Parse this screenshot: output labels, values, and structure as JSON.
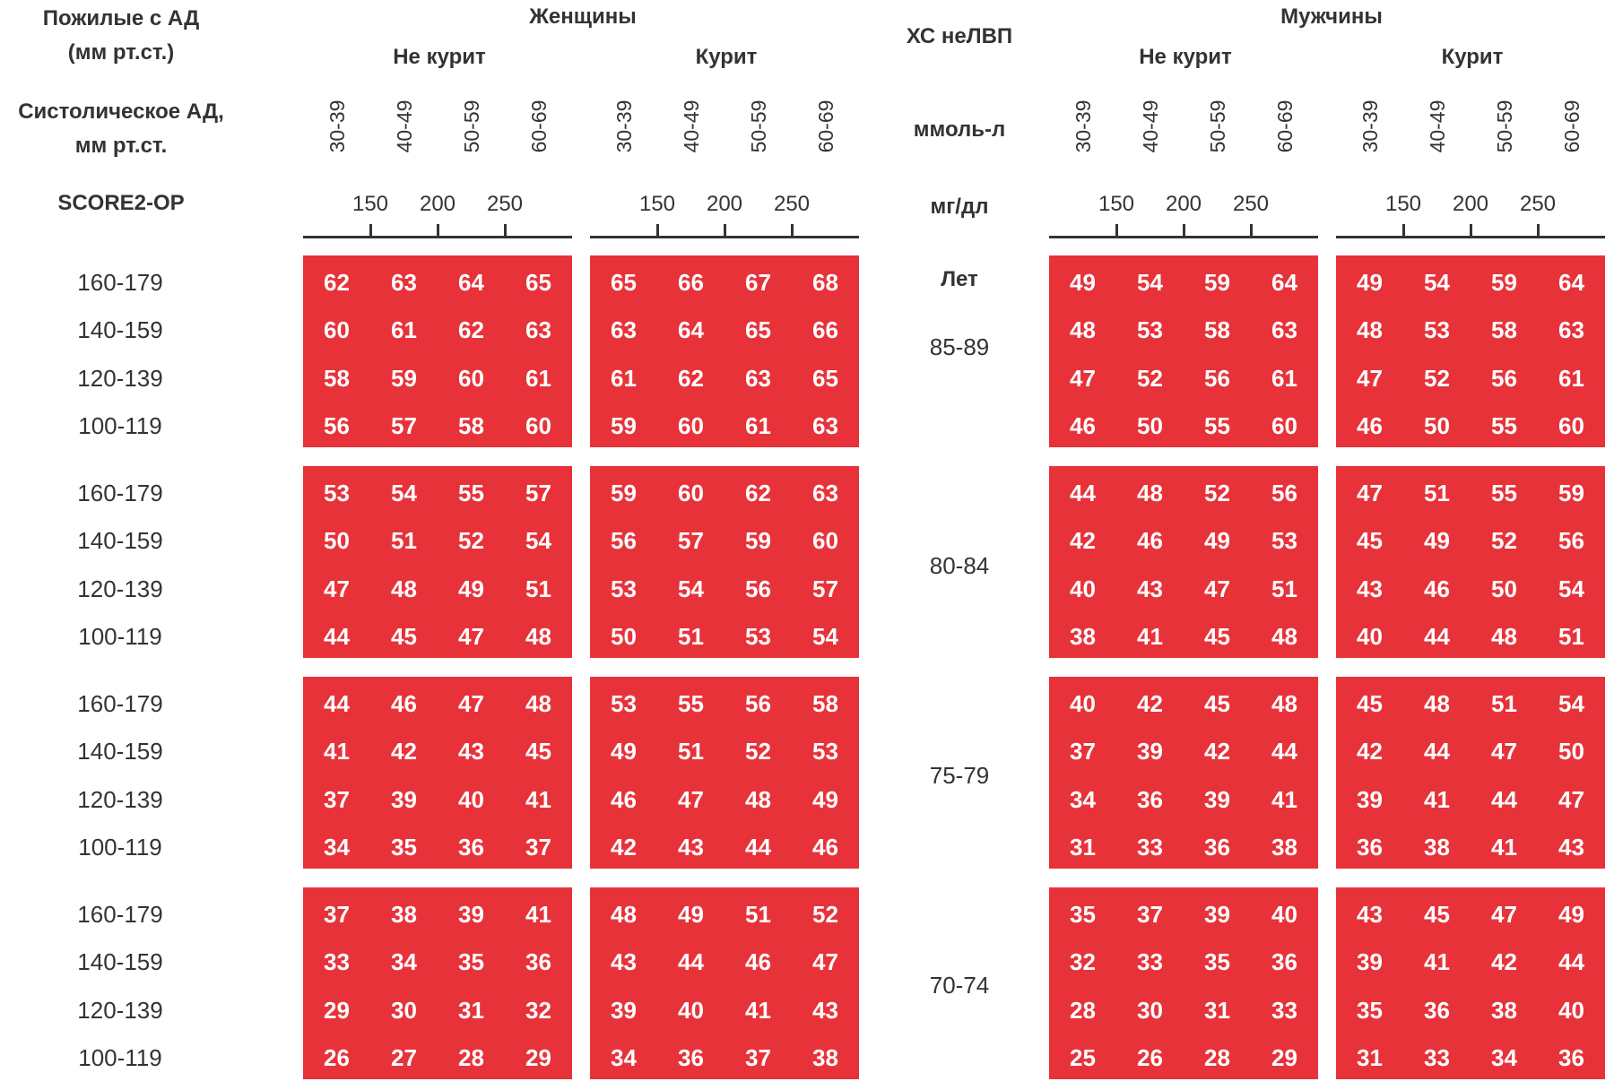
{
  "chart_data": {
    "type": "table",
    "title": "",
    "left_header": {
      "line1": "Пожилые с АД",
      "line2": "(мм рт.ст.)",
      "sbp_line1": "Систолическое АД,",
      "sbp_line2": "мм рт.ст.",
      "score_label": "SCORE2-OP"
    },
    "center_header": {
      "hc_label": "ХС неЛВП",
      "mmol_label": "ммоль-л",
      "mgdl_label": "мг/дл",
      "age_label": "Лет"
    },
    "sexes": [
      {
        "name": "Женщины",
        "groups": [
          "Не курит",
          "Курит"
        ]
      },
      {
        "name": "Мужчины",
        "groups": [
          "Не курит",
          "Курит"
        ]
      }
    ],
    "cholesterol_mmol": [
      "30-39",
      "40-49",
      "50-59",
      "60-69"
    ],
    "cholesterol_mgdl_ticks": [
      "150",
      "200",
      "250"
    ],
    "sbp_rows": [
      "160-179",
      "140-159",
      "120-139",
      "100-119"
    ],
    "age_groups": [
      "85-89",
      "80-84",
      "75-79",
      "70-74"
    ],
    "cell_color": "#e8323a",
    "values": {
      "women_nonsmoker": [
        [
          [
            62,
            63,
            64,
            65
          ],
          [
            60,
            61,
            62,
            63
          ],
          [
            58,
            59,
            60,
            61
          ],
          [
            56,
            57,
            58,
            60
          ]
        ],
        [
          [
            53,
            54,
            55,
            57
          ],
          [
            50,
            51,
            52,
            54
          ],
          [
            47,
            48,
            49,
            51
          ],
          [
            44,
            45,
            47,
            48
          ]
        ],
        [
          [
            44,
            46,
            47,
            48
          ],
          [
            41,
            42,
            43,
            45
          ],
          [
            37,
            39,
            40,
            41
          ],
          [
            34,
            35,
            36,
            37
          ]
        ],
        [
          [
            37,
            38,
            39,
            41
          ],
          [
            33,
            34,
            35,
            36
          ],
          [
            29,
            30,
            31,
            32
          ],
          [
            26,
            27,
            28,
            29
          ]
        ]
      ],
      "women_smoker": [
        [
          [
            65,
            66,
            67,
            68
          ],
          [
            63,
            64,
            65,
            66
          ],
          [
            61,
            62,
            63,
            65
          ],
          [
            59,
            60,
            61,
            63
          ]
        ],
        [
          [
            59,
            60,
            62,
            63
          ],
          [
            56,
            57,
            59,
            60
          ],
          [
            53,
            54,
            56,
            57
          ],
          [
            50,
            51,
            53,
            54
          ]
        ],
        [
          [
            53,
            55,
            56,
            58
          ],
          [
            49,
            51,
            52,
            53
          ],
          [
            46,
            47,
            48,
            49
          ],
          [
            42,
            43,
            44,
            46
          ]
        ],
        [
          [
            48,
            49,
            51,
            52
          ],
          [
            43,
            44,
            46,
            47
          ],
          [
            39,
            40,
            41,
            43
          ],
          [
            34,
            36,
            37,
            38
          ]
        ]
      ],
      "men_nonsmoker": [
        [
          [
            49,
            54,
            59,
            64
          ],
          [
            48,
            53,
            58,
            63
          ],
          [
            47,
            52,
            56,
            61
          ],
          [
            46,
            50,
            55,
            60
          ]
        ],
        [
          [
            44,
            48,
            52,
            56
          ],
          [
            42,
            46,
            49,
            53
          ],
          [
            40,
            43,
            47,
            51
          ],
          [
            38,
            41,
            45,
            48
          ]
        ],
        [
          [
            40,
            42,
            45,
            48
          ],
          [
            37,
            39,
            42,
            44
          ],
          [
            34,
            36,
            39,
            41
          ],
          [
            31,
            33,
            36,
            38
          ]
        ],
        [
          [
            35,
            37,
            39,
            40
          ],
          [
            32,
            33,
            35,
            36
          ],
          [
            28,
            30,
            31,
            33
          ],
          [
            25,
            26,
            28,
            29
          ]
        ]
      ],
      "men_smoker": [
        [
          [
            49,
            54,
            59,
            64
          ],
          [
            48,
            53,
            58,
            63
          ],
          [
            47,
            52,
            56,
            61
          ],
          [
            46,
            50,
            55,
            60
          ]
        ],
        [
          [
            47,
            51,
            55,
            59
          ],
          [
            45,
            49,
            52,
            56
          ],
          [
            43,
            46,
            50,
            54
          ],
          [
            40,
            44,
            48,
            51
          ]
        ],
        [
          [
            45,
            48,
            51,
            54
          ],
          [
            42,
            44,
            47,
            50
          ],
          [
            39,
            41,
            44,
            47
          ],
          [
            36,
            38,
            41,
            43
          ]
        ],
        [
          [
            43,
            45,
            47,
            49
          ],
          [
            39,
            41,
            42,
            44
          ],
          [
            35,
            36,
            38,
            40
          ],
          [
            31,
            33,
            34,
            36
          ]
        ]
      ]
    }
  }
}
